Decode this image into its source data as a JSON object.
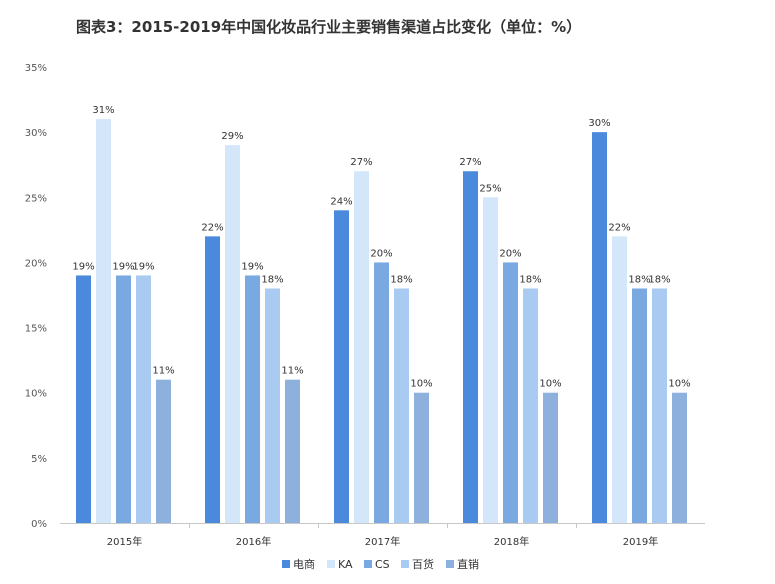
{
  "chart_data": {
    "type": "bar",
    "title": "图表3：2015-2019年中国化妆品行业主要销售渠道占比变化（单位：%）",
    "categories": [
      "2015年",
      "2016年",
      "2017年",
      "2018年",
      "2019年"
    ],
    "series": [
      {
        "name": "电商",
        "color": "#4a89dc",
        "values": [
          19,
          22,
          24,
          27,
          30
        ]
      },
      {
        "name": "KA",
        "color": "#d4e6fa",
        "values": [
          31,
          29,
          27,
          25,
          22
        ]
      },
      {
        "name": "CS",
        "color": "#7aa9e2",
        "values": [
          19,
          19,
          20,
          20,
          18
        ]
      },
      {
        "name": "百货",
        "color": "#a9caf1",
        "values": [
          19,
          18,
          18,
          18,
          18
        ]
      },
      {
        "name": "直销",
        "color": "#8db0dc",
        "values": [
          11,
          11,
          10,
          10,
          10
        ]
      }
    ],
    "y_ticks": [
      "0%",
      "5%",
      "10%",
      "15%",
      "20%",
      "25%",
      "30%",
      "35%"
    ],
    "ylim": [
      0,
      35
    ],
    "value_suffix": "%",
    "grid": false,
    "legend_position": "bottom"
  }
}
